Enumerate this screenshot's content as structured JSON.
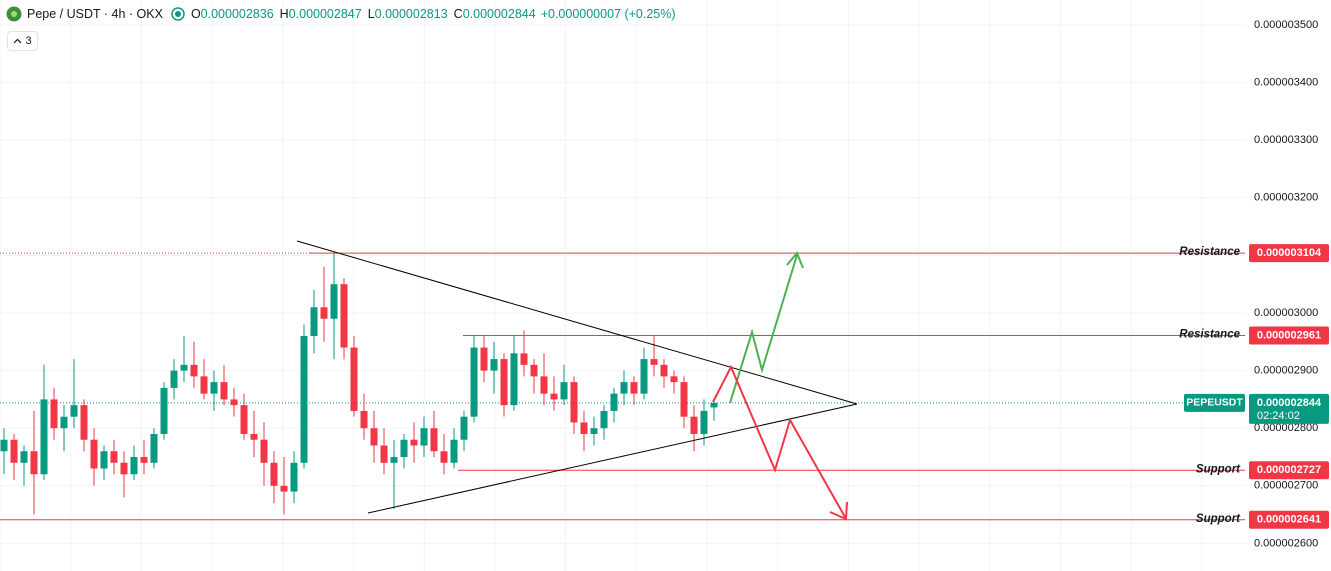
{
  "chart_data": {
    "type": "candlestick",
    "title": "Pepe / USDT · 4h · OKX",
    "ohlc_header": [
      {
        "label": "O",
        "value": "0.000002836"
      },
      {
        "label": "H",
        "value": "0.000002847"
      },
      {
        "label": "L",
        "value": "0.000002813"
      },
      {
        "label": "C",
        "value": "0.000002844"
      }
    ],
    "change": "+0.000000007 (+0.25%)",
    "indicators": "3",
    "open": [
      2.76e-06,
      2.78e-06,
      2.74e-06,
      2.76e-06,
      2.72e-06,
      2.85e-06,
      2.8e-06,
      2.82e-06,
      2.84e-06,
      2.78e-06,
      2.73e-06,
      2.76e-06,
      2.74e-06,
      2.72e-06,
      2.75e-06,
      2.74e-06,
      2.79e-06,
      2.87e-06,
      2.9e-06,
      2.91e-06,
      2.89e-06,
      2.86e-06,
      2.88e-06,
      2.85e-06,
      2.84e-06,
      2.79e-06,
      2.78e-06,
      2.74e-06,
      2.7e-06,
      2.69e-06,
      2.74e-06,
      2.96e-06,
      3.01e-06,
      2.99e-06,
      3.05e-06,
      2.94e-06,
      2.83e-06,
      2.8e-06,
      2.77e-06,
      2.74e-06,
      2.75e-06,
      2.78e-06,
      2.77e-06,
      2.8e-06,
      2.76e-06,
      2.74e-06,
      2.78e-06,
      2.82e-06,
      2.94e-06,
      2.9e-06,
      2.92e-06,
      2.84e-06,
      2.93e-06,
      2.91e-06,
      2.89e-06,
      2.86e-06,
      2.85e-06,
      2.88e-06,
      2.81e-06,
      2.79e-06,
      2.8e-06,
      2.83e-06,
      2.86e-06,
      2.88e-06,
      2.86e-06,
      2.92e-06,
      2.91e-06,
      2.89e-06,
      2.88e-06,
      2.82e-06,
      2.79e-06,
      2.836e-06
    ],
    "high": [
      2.8e-06,
      2.79e-06,
      2.77e-06,
      2.83e-06,
      2.91e-06,
      2.87e-06,
      2.84e-06,
      2.92e-06,
      2.85e-06,
      2.8e-06,
      2.77e-06,
      2.78e-06,
      2.76e-06,
      2.77e-06,
      2.78e-06,
      2.8e-06,
      2.88e-06,
      2.92e-06,
      2.96e-06,
      2.95e-06,
      2.92e-06,
      2.9e-06,
      2.91e-06,
      2.87e-06,
      2.86e-06,
      2.83e-06,
      2.81e-06,
      2.76e-06,
      2.75e-06,
      2.76e-06,
      2.98e-06,
      3.04e-06,
      3.08e-06,
      3.104e-06,
      3.06e-06,
      2.96e-06,
      2.86e-06,
      2.83e-06,
      2.8e-06,
      2.78e-06,
      2.79e-06,
      2.81e-06,
      2.82e-06,
      2.83e-06,
      2.79e-06,
      2.8e-06,
      2.83e-06,
      2.96e-06,
      2.96e-06,
      2.95e-06,
      2.93e-06,
      2.96e-06,
      2.97e-06,
      2.92e-06,
      2.93e-06,
      2.89e-06,
      2.91e-06,
      2.89e-06,
      2.83e-06,
      2.82e-06,
      2.84e-06,
      2.87e-06,
      2.9e-06,
      2.89e-06,
      2.94e-06,
      2.961e-06,
      2.92e-06,
      2.9e-06,
      2.89e-06,
      2.84e-06,
      2.85e-06,
      2.847e-06
    ],
    "low": [
      2.72e-06,
      2.71e-06,
      2.7e-06,
      2.65e-06,
      2.71e-06,
      2.78e-06,
      2.76e-06,
      2.8e-06,
      2.76e-06,
      2.7e-06,
      2.71e-06,
      2.72e-06,
      2.68e-06,
      2.71e-06,
      2.72e-06,
      2.73e-06,
      2.78e-06,
      2.85e-06,
      2.88e-06,
      2.87e-06,
      2.85e-06,
      2.83e-06,
      2.84e-06,
      2.82e-06,
      2.78e-06,
      2.75e-06,
      2.7e-06,
      2.67e-06,
      2.65e-06,
      2.67e-06,
      2.73e-06,
      2.93e-06,
      2.95e-06,
      2.92e-06,
      2.92e-06,
      2.82e-06,
      2.78e-06,
      2.74e-06,
      2.72e-06,
      2.66e-06,
      2.73e-06,
      2.74e-06,
      2.75e-06,
      2.75e-06,
      2.72e-06,
      2.73e-06,
      2.76e-06,
      2.81e-06,
      2.88e-06,
      2.86e-06,
      2.82e-06,
      2.83e-06,
      2.89e-06,
      2.86e-06,
      2.84e-06,
      2.83e-06,
      2.84e-06,
      2.79e-06,
      2.76e-06,
      2.77e-06,
      2.78e-06,
      2.81e-06,
      2.84e-06,
      2.84e-06,
      2.85e-06,
      2.89e-06,
      2.87e-06,
      2.86e-06,
      2.8e-06,
      2.76e-06,
      2.77e-06,
      2.813e-06
    ],
    "close": [
      2.78e-06,
      2.74e-06,
      2.76e-06,
      2.72e-06,
      2.85e-06,
      2.8e-06,
      2.82e-06,
      2.84e-06,
      2.78e-06,
      2.73e-06,
      2.76e-06,
      2.74e-06,
      2.72e-06,
      2.75e-06,
      2.74e-06,
      2.79e-06,
      2.87e-06,
      2.9e-06,
      2.91e-06,
      2.89e-06,
      2.86e-06,
      2.88e-06,
      2.85e-06,
      2.84e-06,
      2.79e-06,
      2.78e-06,
      2.74e-06,
      2.7e-06,
      2.69e-06,
      2.74e-06,
      2.96e-06,
      3.01e-06,
      2.99e-06,
      3.05e-06,
      2.94e-06,
      2.83e-06,
      2.8e-06,
      2.77e-06,
      2.74e-06,
      2.75e-06,
      2.78e-06,
      2.77e-06,
      2.8e-06,
      2.76e-06,
      2.74e-06,
      2.78e-06,
      2.82e-06,
      2.94e-06,
      2.9e-06,
      2.92e-06,
      2.84e-06,
      2.93e-06,
      2.91e-06,
      2.89e-06,
      2.86e-06,
      2.85e-06,
      2.88e-06,
      2.81e-06,
      2.79e-06,
      2.8e-06,
      2.83e-06,
      2.86e-06,
      2.88e-06,
      2.86e-06,
      2.92e-06,
      2.91e-06,
      2.89e-06,
      2.88e-06,
      2.82e-06,
      2.79e-06,
      2.83e-06,
      2.844e-06
    ],
    "ylim": [
      2.5521e-06,
      3.5434e-06
    ],
    "yticks": [
      {
        "value": 3.5e-06,
        "label": "0.000003500"
      },
      {
        "value": 3.4e-06,
        "label": "0.000003400"
      },
      {
        "value": 3.3e-06,
        "label": "0.000003300"
      },
      {
        "value": 3.2e-06,
        "label": "0.000003200"
      },
      {
        "value": 3.1e-06,
        "label": "0.000003100"
      },
      {
        "value": 3e-06,
        "label": "0.000003000"
      },
      {
        "value": 2.9e-06,
        "label": "0.000002900"
      },
      {
        "value": 2.8e-06,
        "label": "0.000002800"
      },
      {
        "value": 2.7e-06,
        "label": "0.000002700"
      },
      {
        "value": 2.6e-06,
        "label": "0.000002600"
      }
    ],
    "grid": true,
    "up_color": "#089981",
    "down_color": "#f23645",
    "levels": [
      {
        "name": "Resistance",
        "value": 3.104e-06,
        "label": "0.000003104"
      },
      {
        "name": "Resistance",
        "value": 2.961e-06,
        "label": "0.000002961"
      },
      {
        "name": "Support",
        "value": 2.727e-06,
        "label": "0.000002727"
      },
      {
        "name": "Support",
        "value": 2.641e-06,
        "label": "0.000002641"
      }
    ],
    "last_price": {
      "symbol": "PEPEUSDT",
      "value": 2.844e-06,
      "label": "0.000002844",
      "countdown": "02:24:02"
    }
  }
}
